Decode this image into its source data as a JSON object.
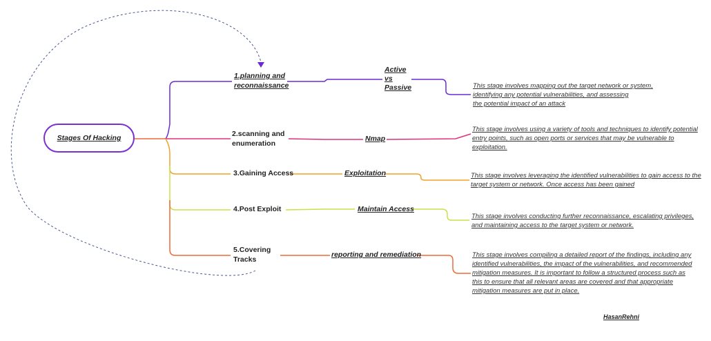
{
  "root": {
    "label": "Stages Of Hacking"
  },
  "colors": {
    "purple": "#6a2bd4",
    "pink": "#e0307a",
    "orange": "#f0a22a",
    "lime": "#c8e04a",
    "red": "#ee6a3a",
    "dashed": "#4a5690"
  },
  "stages": [
    {
      "label": "1.planning and\nreconnaissance",
      "technique": "Active\nvs\nPassive",
      "description": "This stage involves mapping out the target network or system,\nidentifying any potential vulnerabilities, and assessing\nthe potential impact of an attack"
    },
    {
      "label": "2.scanning and\nenumeration",
      "technique": "Nmap",
      "description": "This stage involves using a variety of tools and techniques to identify potential\nentry points, such as open ports or services that may be vulnerable to\nexploitation."
    },
    {
      "label": "3.Gaining Access",
      "technique": "Exploitation",
      "description": "This stage involves leveraging the identified vulnerabilities to gain access to the\ntarget system or network. Once access has been gained"
    },
    {
      "label": "4.Post Exploit",
      "technique": "Maintain Access",
      "description": "This stage involves conducting further reconnaissance, escalating privileges,\nand maintaining access to the target system or network."
    },
    {
      "label": "5.Covering\nTracks",
      "technique": "reporting and remediation",
      "description": "This stage involves compiling a detailed report of the findings, including any\nidentified vulnerabilities, the impact of the vulnerabilities, and recommended\nmitigation measures. It is important to follow a structured process such as\nthis to ensure that all relevant areas are covered and that appropriate\nmitigation measures are put in place."
    }
  ],
  "author": "HasanRehni"
}
